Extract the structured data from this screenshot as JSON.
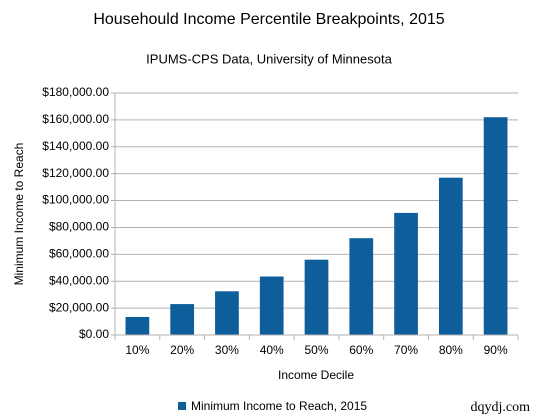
{
  "chart_data": {
    "type": "bar",
    "title": "Househould Income Percentile Breakpoints, 2015",
    "subtitle": "IPUMS-CPS Data, University of Minnesota",
    "x_label": "Income Decile",
    "y_label": "Minimum Income to Reach",
    "categories": [
      "10%",
      "20%",
      "30%",
      "40%",
      "50%",
      "60%",
      "70%",
      "80%",
      "90%"
    ],
    "series": [
      {
        "name": "Minimum Income to Reach, 2015",
        "color": "#0f5e9c",
        "values": [
          13400,
          23000,
          32500,
          43500,
          56000,
          72000,
          90800,
          117000,
          162000
        ]
      }
    ],
    "ylim": [
      0,
      180000
    ],
    "yticks": [
      {
        "value": 0,
        "label": "$0.00"
      },
      {
        "value": 20000,
        "label": "$20,000.00"
      },
      {
        "value": 40000,
        "label": "$40,000.00"
      },
      {
        "value": 60000,
        "label": "$60,000.00"
      },
      {
        "value": 80000,
        "label": "$80,000.00"
      },
      {
        "value": 100000,
        "label": "$100,000.00"
      },
      {
        "value": 120000,
        "label": "$120,000.00"
      },
      {
        "value": 140000,
        "label": "$140,000.00"
      },
      {
        "value": 160000,
        "label": "$160,000.00"
      },
      {
        "value": 180000,
        "label": "$180,000.00"
      }
    ],
    "grid": true,
    "legend": "bottom",
    "watermark": "dqydj.com"
  }
}
